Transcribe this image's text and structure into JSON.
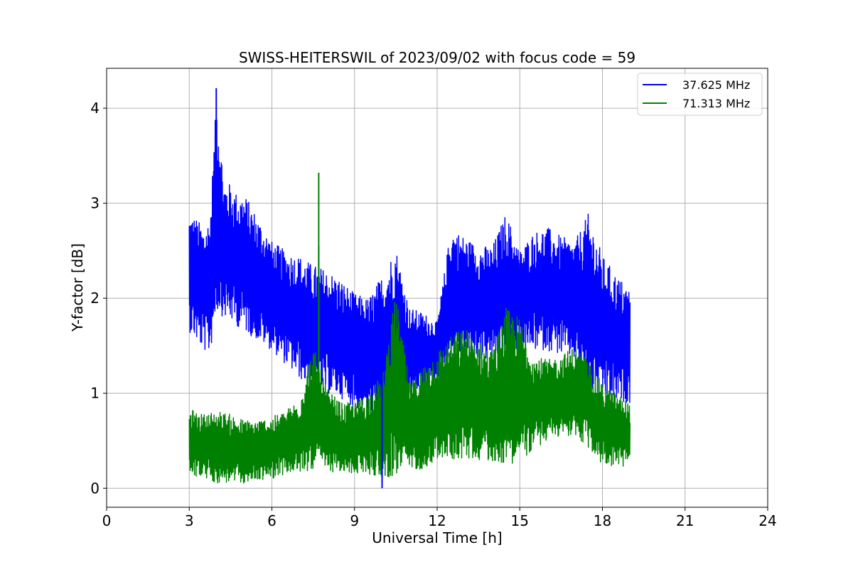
{
  "chart_data": {
    "type": "line",
    "title": "SWISS-HEITERSWIL of 2023/09/02 with focus code = 59",
    "xlabel": "Universal Time [h]",
    "ylabel": "Y-factor [dB]",
    "xlim": [
      0,
      24
    ],
    "ylim": [
      -0.2,
      4.42
    ],
    "xticks": [
      0,
      3,
      6,
      9,
      12,
      15,
      18,
      21,
      24
    ],
    "xtick_labels": [
      "0",
      "3",
      "6",
      "9",
      "12",
      "15",
      "18",
      "21",
      "24"
    ],
    "yticks": [
      0,
      1,
      2,
      3,
      4
    ],
    "ytick_labels": [
      "0",
      "1",
      "2",
      "3",
      "4"
    ],
    "grid": true,
    "legend_position": "top-right",
    "series": [
      {
        "name": "37.625 MHz",
        "color": "#0000ff",
        "x": [
          3.0,
          3.25,
          3.5,
          3.75,
          4.0,
          4.25,
          4.5,
          4.75,
          5.0,
          5.5,
          6.0,
          6.5,
          7.0,
          7.5,
          8.0,
          8.5,
          9.0,
          9.5,
          10.0,
          10.5,
          11.0,
          11.5,
          12.0,
          12.5,
          13.0,
          13.5,
          14.0,
          14.5,
          15.0,
          15.5,
          16.0,
          16.5,
          17.0,
          17.5,
          18.0,
          18.5,
          19.0
        ],
        "y_upper": [
          2.9,
          2.85,
          2.75,
          2.85,
          4.2,
          3.25,
          3.2,
          3.1,
          3.1,
          2.85,
          2.6,
          2.5,
          2.45,
          2.35,
          2.3,
          2.2,
          2.05,
          2.0,
          2.25,
          2.55,
          1.9,
          1.85,
          1.75,
          2.75,
          2.65,
          2.55,
          2.55,
          2.9,
          2.5,
          2.7,
          2.75,
          2.65,
          2.6,
          2.9,
          2.45,
          2.25,
          2.1
        ],
        "y_lower": [
          1.65,
          1.55,
          1.45,
          1.4,
          1.85,
          1.8,
          1.75,
          1.7,
          1.65,
          1.55,
          1.45,
          1.3,
          1.15,
          1.05,
          1.0,
          0.95,
          0.85,
          0.75,
          0.6,
          0.85,
          0.95,
          1.0,
          1.15,
          1.35,
          1.4,
          1.35,
          1.35,
          1.4,
          1.45,
          1.45,
          1.45,
          1.4,
          1.35,
          1.0,
          0.95,
          0.9,
          0.9
        ]
      },
      {
        "name": "71.313 MHz",
        "color": "#008000",
        "x": [
          3.0,
          3.25,
          3.5,
          3.75,
          4.0,
          4.25,
          4.5,
          4.75,
          5.0,
          5.5,
          6.0,
          6.5,
          7.0,
          7.5,
          8.0,
          8.5,
          9.0,
          9.5,
          10.0,
          10.5,
          11.0,
          11.5,
          12.0,
          12.5,
          13.0,
          13.5,
          14.0,
          14.5,
          15.0,
          15.5,
          16.0,
          16.5,
          17.0,
          17.5,
          18.0,
          18.5,
          19.0
        ],
        "y_upper": [
          0.85,
          0.8,
          0.78,
          0.8,
          0.82,
          0.8,
          0.78,
          0.75,
          0.72,
          0.72,
          0.75,
          0.82,
          0.95,
          1.5,
          1.05,
          0.9,
          0.9,
          1.0,
          1.2,
          2.05,
          1.1,
          1.3,
          1.45,
          1.6,
          1.7,
          1.55,
          1.45,
          1.9,
          1.8,
          1.4,
          1.35,
          1.4,
          1.5,
          1.35,
          1.1,
          1.0,
          0.9
        ],
        "y_lower": [
          0.15,
          0.12,
          0.1,
          0.08,
          0.05,
          0.05,
          0.05,
          0.05,
          0.05,
          0.08,
          0.1,
          0.15,
          0.15,
          0.2,
          0.18,
          0.15,
          0.15,
          0.15,
          0.1,
          0.12,
          0.2,
          0.2,
          0.3,
          0.3,
          0.3,
          0.3,
          0.28,
          0.25,
          0.28,
          0.4,
          0.5,
          0.55,
          0.55,
          0.4,
          0.25,
          0.22,
          0.22
        ]
      }
    ],
    "spikes": [
      {
        "series": "37.625 MHz",
        "x": 3.98,
        "y": 4.21
      },
      {
        "series": "37.625 MHz",
        "x": 10.0,
        "y": 0.0
      },
      {
        "series": "71.313 MHz",
        "x": 7.7,
        "y": 3.32
      },
      {
        "series": "71.313 MHz",
        "x": 7.7,
        "y": 2.55
      }
    ]
  }
}
